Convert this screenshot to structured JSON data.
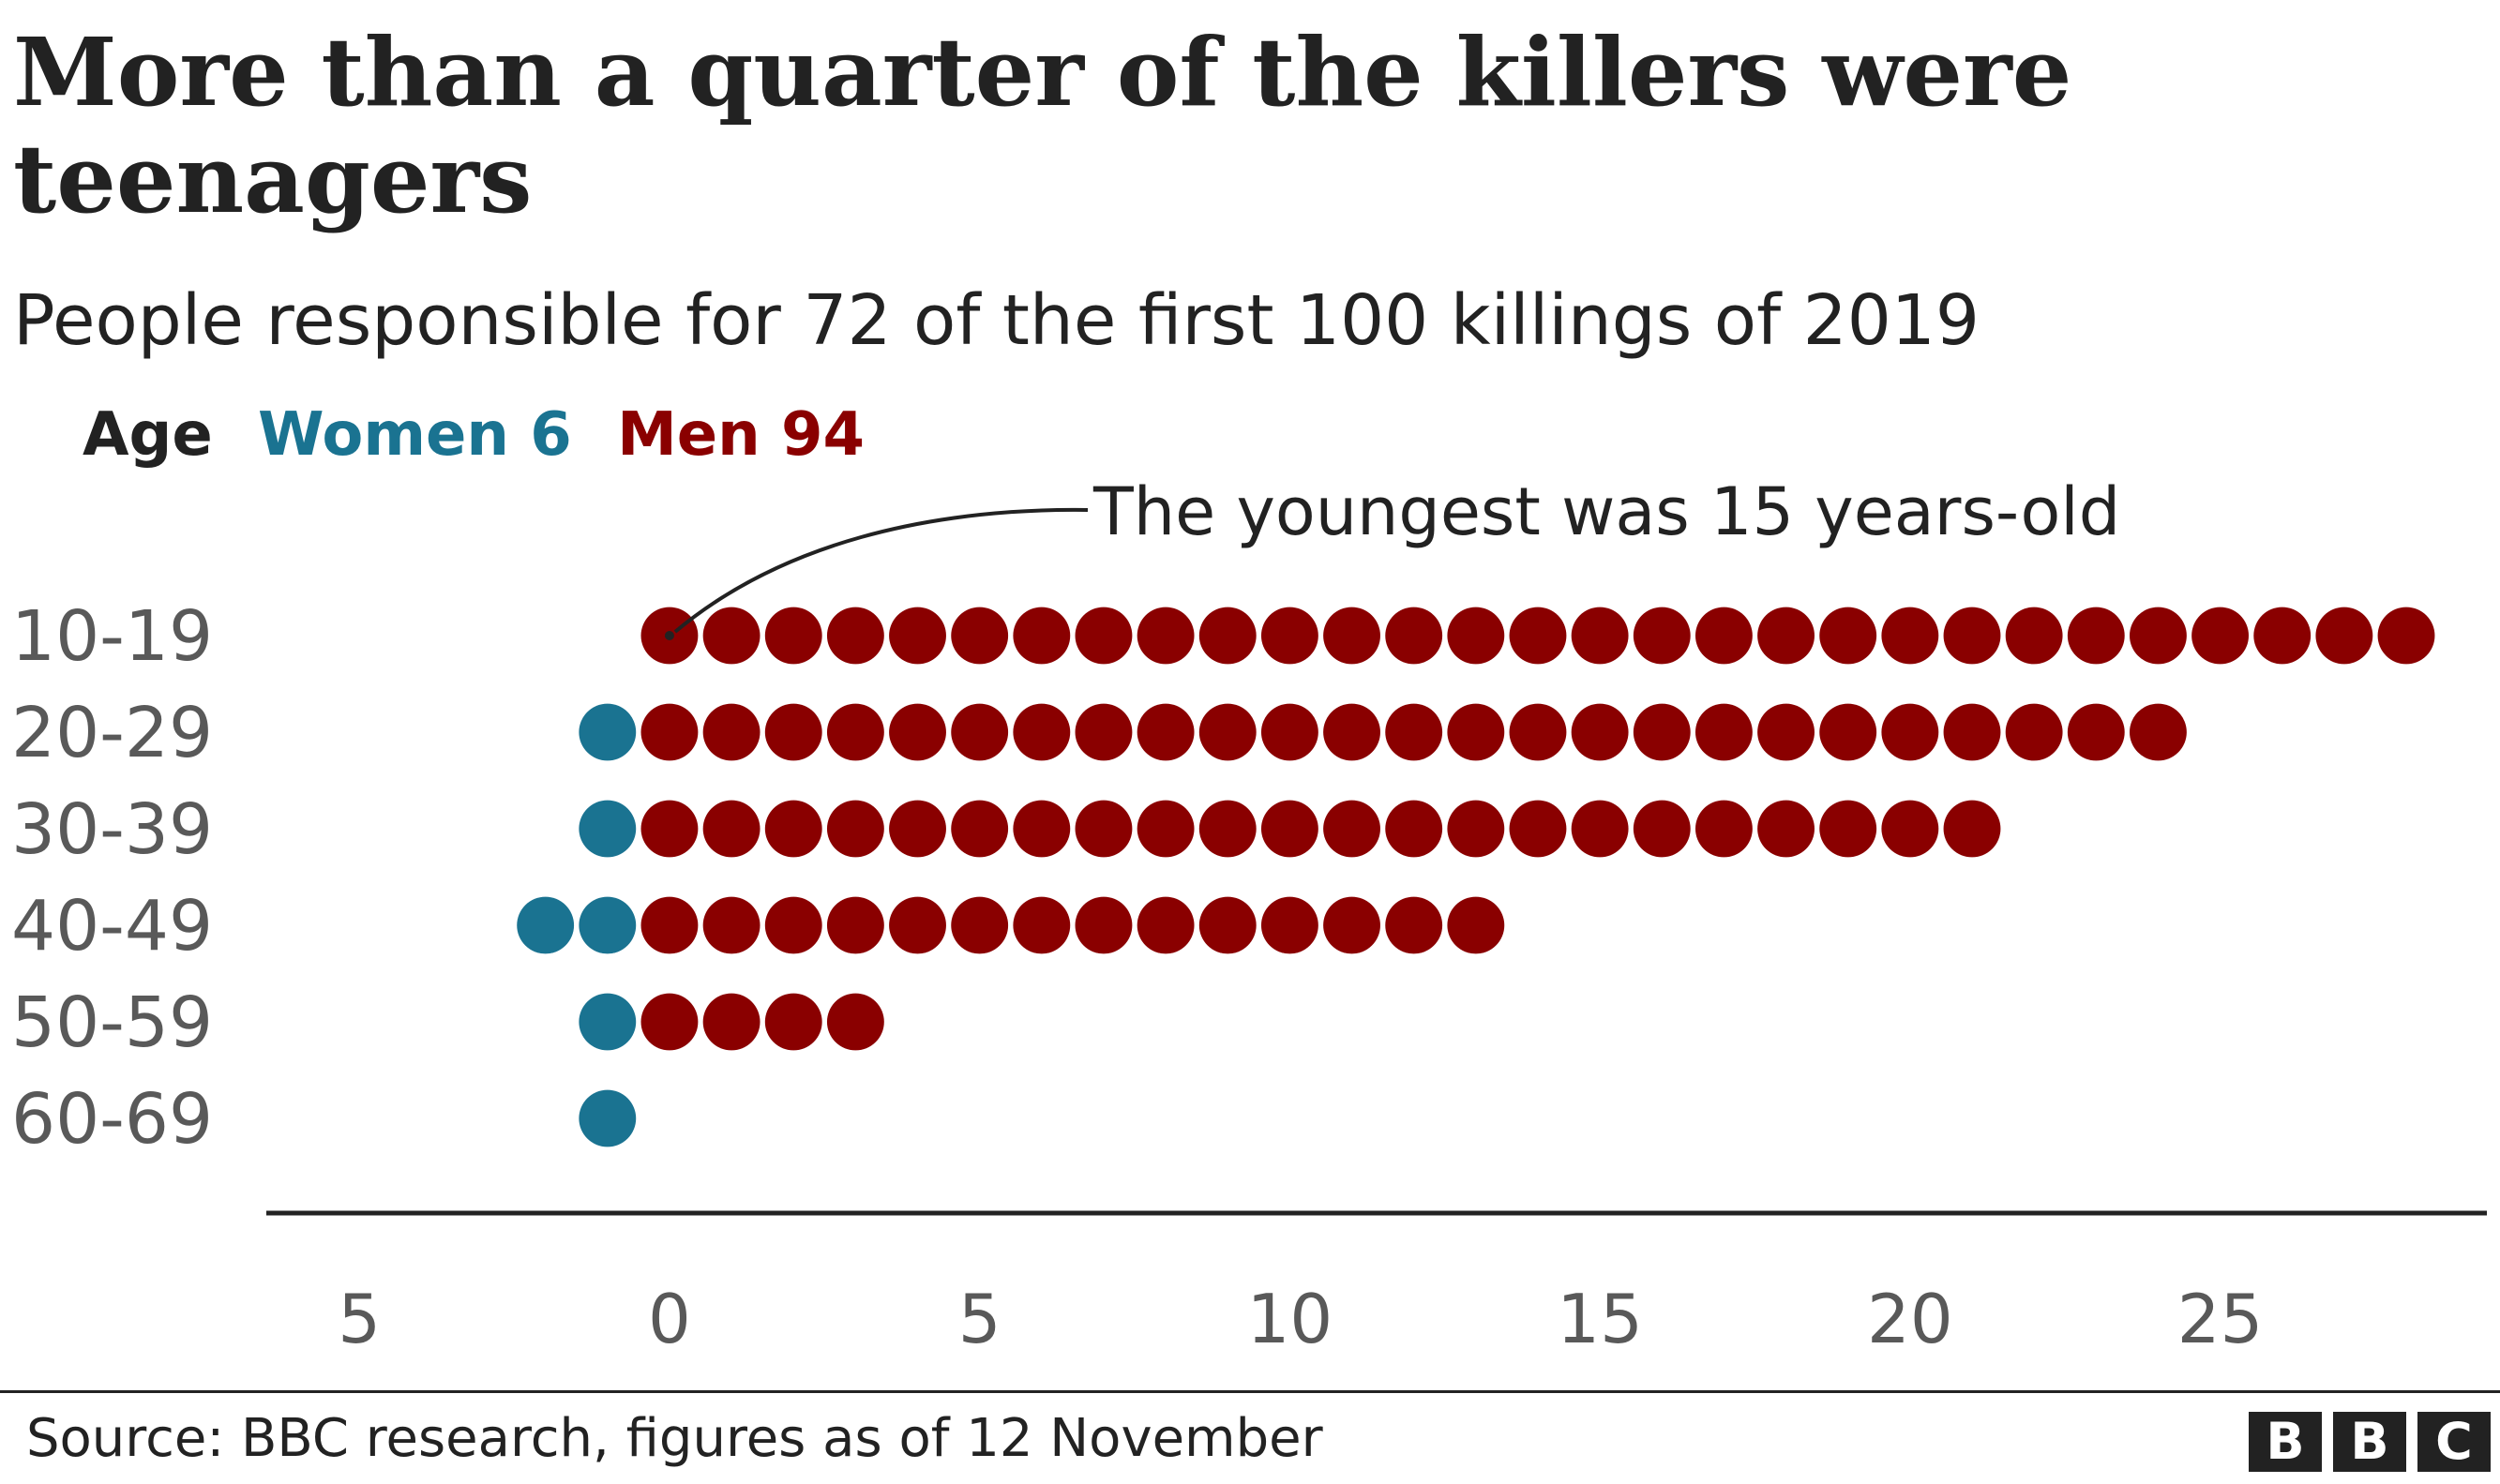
{
  "title": "More than a quarter of the killers were teenagers",
  "subtitle": "People responsible for 72 of the first 100 killings of 2019",
  "legend": {
    "axis_label": "Age",
    "women_label": "Women 6",
    "men_label": "Men 94"
  },
  "annotation": "The youngest was 15 years-old",
  "source": "Source: BBC research, figures as of 12 November",
  "logo": [
    "B",
    "B",
    "C"
  ],
  "colors": {
    "women": "#1a7391",
    "men": "#8a0000",
    "axis": "#222222",
    "text": "#222222",
    "tick": "#595959"
  },
  "chart_data": {
    "type": "dot",
    "categories": [
      "10-19",
      "20-29",
      "30-39",
      "40-49",
      "50-59",
      "60-69"
    ],
    "series": [
      {
        "name": "Women 6",
        "values": [
          0,
          1,
          1,
          2,
          1,
          1
        ]
      },
      {
        "name": "Men 94",
        "values": [
          29,
          25,
          22,
          14,
          4,
          0
        ]
      }
    ],
    "xticks": [
      {
        "value": -5,
        "label": "5"
      },
      {
        "value": 0,
        "label": "0"
      },
      {
        "value": 5,
        "label": "5"
      },
      {
        "value": 10,
        "label": "10"
      },
      {
        "value": 15,
        "label": "15"
      },
      {
        "value": 20,
        "label": "20"
      },
      {
        "value": 25,
        "label": "25"
      }
    ],
    "xlim": [
      -6.5,
      29.3
    ],
    "ylabel": "Age",
    "grid": false
  }
}
